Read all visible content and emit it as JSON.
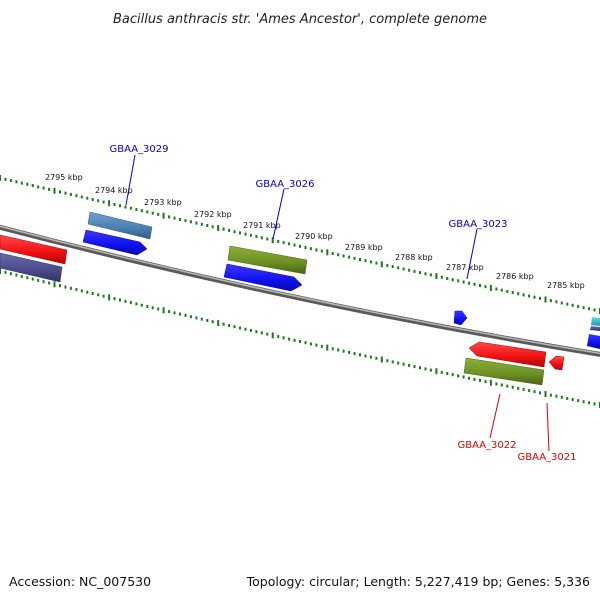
{
  "title": "Bacillus anthracis str. 'Ames Ancestor', complete genome",
  "footer": {
    "accession": "Accession: NC_007530",
    "summary": "Topology: circular; Length: 5,227,419 bp; Genes: 5,336"
  },
  "kbp_labels": [
    "2795 kbp",
    "2794 kbp",
    "2793 kbp",
    "2792 kbp",
    "2791 kbp",
    "2790 kbp",
    "2789 kbp",
    "2788 kbp",
    "2787 kbp",
    "2786 kbp",
    "2785 kbp"
  ],
  "gene_labels": {
    "top": [
      "GBAA_3029",
      "GBAA_3026",
      "GBAA_3023"
    ],
    "bottom": [
      "GBAA_3022",
      "GBAA_3021"
    ]
  },
  "colors": {
    "forward_label": "#0000cc",
    "reverse_label": "#dd0000",
    "tick": "#1a7a1a",
    "backbone": "#7a7a7a",
    "blue": "#1010ee",
    "red": "#ee1010",
    "olive": "#6b8e23",
    "steel": "#4a7fb0",
    "slate": "#4a4a8a",
    "cyan": "#20c0d0"
  }
}
